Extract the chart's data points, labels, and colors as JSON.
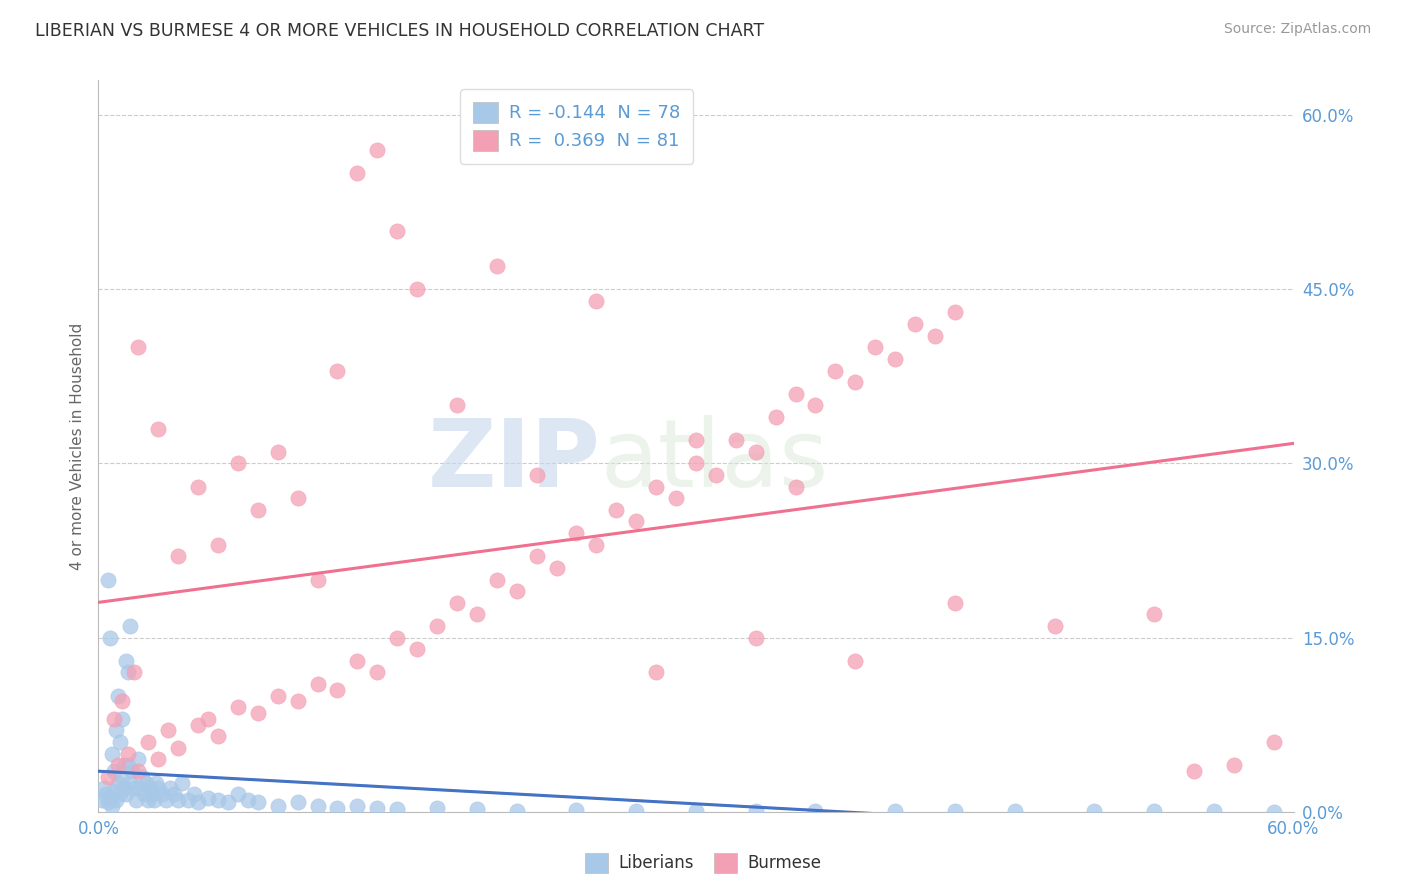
{
  "title": "LIBERIAN VS BURMESE 4 OR MORE VEHICLES IN HOUSEHOLD CORRELATION CHART",
  "source": "Source: ZipAtlas.com",
  "xlim": [
    0.0,
    60.0
  ],
  "ylim": [
    0.0,
    63.0
  ],
  "liberian_R": -0.144,
  "liberian_N": 78,
  "burmese_R": 0.369,
  "burmese_N": 81,
  "liberian_color": "#a8c8e8",
  "burmese_color": "#f4a0b4",
  "liberian_line_color": "#4472c4",
  "burmese_line_color": "#f07090",
  "legend_title_liberian": "Liberians",
  "legend_title_burmese": "Burmese",
  "watermark_zip": "ZIP",
  "watermark_atlas": "atlas",
  "ytick_vals": [
    0,
    15,
    30,
    45,
    60
  ],
  "liberian_x": [
    0.2,
    0.3,
    0.4,
    0.5,
    0.6,
    0.7,
    0.8,
    0.9,
    1.0,
    1.1,
    1.2,
    1.3,
    1.4,
    1.5,
    1.6,
    1.7,
    1.8,
    1.9,
    2.0,
    2.1,
    2.2,
    2.3,
    2.4,
    2.5,
    2.6,
    2.7,
    2.8,
    2.9,
    3.0,
    3.2,
    3.4,
    3.6,
    3.8,
    4.0,
    4.2,
    4.5,
    4.8,
    5.0,
    5.5,
    6.0,
    6.5,
    7.0,
    7.5,
    8.0,
    9.0,
    10.0,
    11.0,
    12.0,
    13.0,
    14.0,
    15.0,
    17.0,
    19.0,
    21.0,
    24.0,
    27.0,
    30.0,
    33.0,
    36.0,
    40.0,
    43.0,
    46.0,
    50.0,
    53.0,
    56.0,
    59.0,
    0.5,
    0.6,
    0.7,
    0.8,
    0.9,
    1.0,
    1.1,
    1.2,
    1.3,
    1.4,
    1.5,
    1.6
  ],
  "liberian_y": [
    1.0,
    2.0,
    1.5,
    0.8,
    1.2,
    0.5,
    1.8,
    1.0,
    2.5,
    1.5,
    3.0,
    2.0,
    1.5,
    4.0,
    2.5,
    3.5,
    2.0,
    1.0,
    4.5,
    2.0,
    3.0,
    1.5,
    2.5,
    1.0,
    2.0,
    1.5,
    1.0,
    2.5,
    2.0,
    1.5,
    1.0,
    2.0,
    1.5,
    1.0,
    2.5,
    1.0,
    1.5,
    0.8,
    1.2,
    1.0,
    0.8,
    1.5,
    1.0,
    0.8,
    0.5,
    0.8,
    0.5,
    0.3,
    0.5,
    0.3,
    0.2,
    0.3,
    0.2,
    0.1,
    0.15,
    0.1,
    0.05,
    0.08,
    0.05,
    0.03,
    0.05,
    0.03,
    0.02,
    0.03,
    0.02,
    0.01,
    20.0,
    15.0,
    5.0,
    3.5,
    7.0,
    10.0,
    6.0,
    8.0,
    4.0,
    13.0,
    12.0,
    16.0
  ],
  "burmese_x": [
    0.5,
    1.0,
    1.5,
    2.0,
    2.5,
    3.0,
    3.5,
    4.0,
    5.0,
    5.5,
    6.0,
    7.0,
    8.0,
    9.0,
    10.0,
    11.0,
    12.0,
    13.0,
    14.0,
    15.0,
    16.0,
    17.0,
    18.0,
    19.0,
    20.0,
    21.0,
    22.0,
    23.0,
    24.0,
    25.0,
    26.0,
    27.0,
    28.0,
    29.0,
    30.0,
    31.0,
    32.0,
    33.0,
    34.0,
    35.0,
    36.0,
    37.0,
    38.0,
    39.0,
    40.0,
    41.0,
    42.0,
    43.0,
    55.0,
    2.0,
    3.0,
    4.0,
    5.0,
    6.0,
    7.0,
    8.0,
    9.0,
    10.0,
    11.0,
    12.0,
    13.0,
    14.0,
    15.0,
    20.0,
    25.0,
    30.0,
    35.0,
    22.0,
    18.0,
    16.0,
    28.0,
    33.0,
    38.0,
    43.0,
    48.0,
    53.0,
    57.0,
    59.0,
    0.8,
    1.2,
    1.8
  ],
  "burmese_y": [
    3.0,
    4.0,
    5.0,
    3.5,
    6.0,
    4.5,
    7.0,
    5.5,
    7.5,
    8.0,
    6.5,
    9.0,
    8.5,
    10.0,
    9.5,
    11.0,
    10.5,
    13.0,
    12.0,
    15.0,
    14.0,
    16.0,
    18.0,
    17.0,
    20.0,
    19.0,
    22.0,
    21.0,
    24.0,
    23.0,
    26.0,
    25.0,
    28.0,
    27.0,
    30.0,
    29.0,
    32.0,
    31.0,
    34.0,
    36.0,
    35.0,
    38.0,
    37.0,
    40.0,
    39.0,
    42.0,
    41.0,
    43.0,
    3.5,
    40.0,
    33.0,
    22.0,
    28.0,
    23.0,
    30.0,
    26.0,
    31.0,
    27.0,
    20.0,
    38.0,
    55.0,
    57.0,
    50.0,
    47.0,
    44.0,
    32.0,
    28.0,
    29.0,
    35.0,
    45.0,
    12.0,
    15.0,
    13.0,
    18.0,
    16.0,
    17.0,
    4.0,
    6.0,
    8.0,
    9.5,
    12.0
  ]
}
